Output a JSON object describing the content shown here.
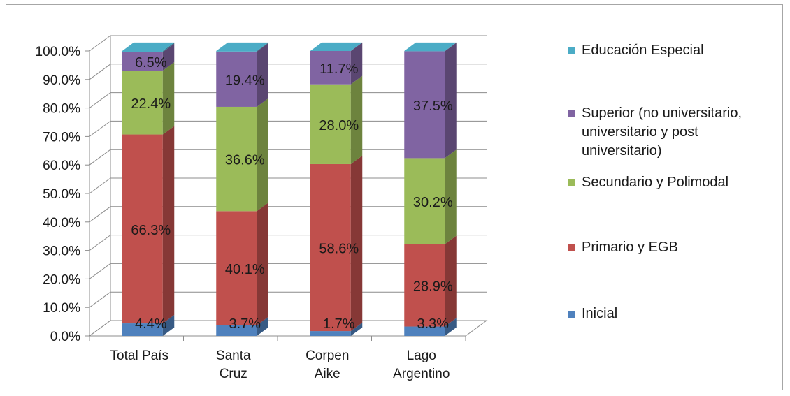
{
  "chart_data": {
    "type": "bar",
    "stacked": true,
    "three_d": true,
    "categories": [
      [
        "Total País"
      ],
      [
        "Santa",
        "Cruz"
      ],
      [
        "Corpen",
        "Aike"
      ],
      [
        "Lago",
        "Argentino"
      ]
    ],
    "y_ticks": [
      "0.0%",
      "10.0%",
      "20.0%",
      "30.0%",
      "40.0%",
      "50.0%",
      "60.0%",
      "70.0%",
      "80.0%",
      "90.0%",
      "100.0%"
    ],
    "ylim": [
      0,
      100
    ],
    "legend_position": "right",
    "series": [
      {
        "name": "Inicial",
        "color": "#4f81bd",
        "values": [
          4.4,
          3.7,
          1.7,
          3.3
        ],
        "labels": [
          "4.4%",
          "3.7%",
          "1.7%",
          "3.3%"
        ]
      },
      {
        "name": "Primario y EGB",
        "color": "#c0504d",
        "values": [
          66.3,
          40.1,
          58.6,
          28.9
        ],
        "labels": [
          "66.3%",
          "40.1%",
          "58.6%",
          "28.9%"
        ]
      },
      {
        "name": "Secundario y Polimodal",
        "color": "#9bbb59",
        "values": [
          22.4,
          36.6,
          28.0,
          30.2
        ],
        "labels": [
          "22.4%",
          "36.6%",
          "28.0%",
          "30.2%"
        ]
      },
      {
        "name": [
          "Superior (no universitario,",
          "universitario y post",
          "universitario)"
        ],
        "color": "#8064a2",
        "values": [
          6.5,
          19.4,
          11.7,
          37.5
        ],
        "labels": [
          "6.5%",
          "19.4%",
          "11.7%",
          "37.5%"
        ]
      },
      {
        "name": "Educación Especial",
        "color": "#4bacc6",
        "values": [
          0.4,
          0.2,
          0.0,
          0.1
        ],
        "labels": [
          "",
          "",
          "",
          ""
        ]
      }
    ]
  }
}
